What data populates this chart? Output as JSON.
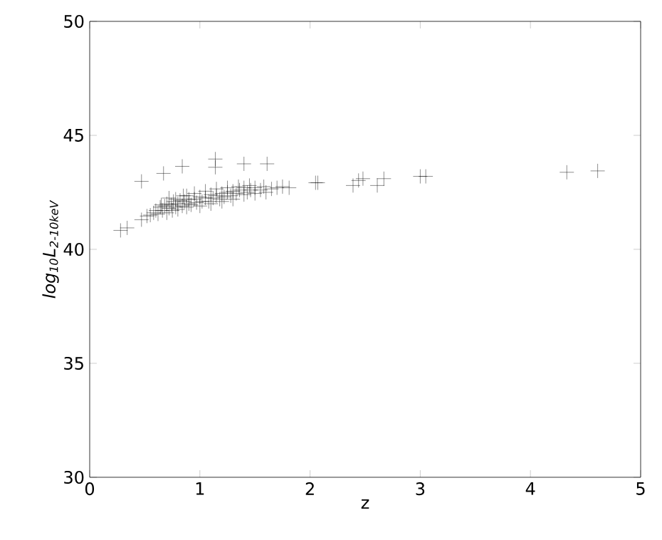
{
  "chart_data": {
    "type": "scatter",
    "xlabel": "z",
    "ylabel": "*log$_{10}$L$_{2-10keV}$*",
    "xlim": [
      0,
      5
    ],
    "ylim": [
      30,
      50
    ],
    "xticks": [
      0,
      1,
      2,
      3,
      4,
      5
    ],
    "yticks": [
      30,
      35,
      40,
      45,
      50
    ],
    "grid": false,
    "marker": "cross",
    "series": [
      {
        "color": "#000000",
        "x": [
          0.28,
          0.34,
          0.47,
          0.47,
          0.52,
          0.67,
          0.84,
          1.14,
          1.14,
          1.4,
          1.61,
          1.81,
          2.05,
          2.07,
          2.39,
          2.44,
          2.48,
          2.61,
          2.67,
          3.0,
          3.05,
          4.33,
          4.61,
          0.55,
          0.58,
          0.6,
          0.62,
          0.64,
          0.66,
          0.68,
          0.7,
          0.7,
          0.72,
          0.74,
          0.75,
          0.76,
          0.78,
          0.8,
          0.8,
          0.82,
          0.84,
          0.86,
          0.88,
          0.9,
          0.9,
          0.92,
          0.95,
          0.97,
          1.0,
          1.0,
          1.02,
          1.05,
          1.08,
          1.1,
          1.1,
          1.12,
          1.15,
          1.18,
          1.2,
          1.2,
          1.22,
          1.25,
          1.28,
          1.3,
          1.3,
          1.33,
          1.36,
          1.4,
          1.4,
          1.43,
          1.46,
          1.5,
          1.5,
          1.55,
          1.58,
          1.6,
          1.65,
          1.7,
          1.75,
          0.72,
          0.85,
          0.95,
          1.05,
          1.15,
          1.25,
          1.35,
          1.45,
          0.65,
          0.78,
          0.88
        ],
        "values": [
          40.83,
          40.94,
          42.98,
          41.3,
          41.46,
          43.33,
          43.64,
          43.96,
          43.6,
          43.75,
          43.75,
          42.7,
          42.92,
          42.92,
          42.8,
          43.02,
          43.1,
          42.8,
          43.1,
          43.2,
          43.2,
          43.38,
          43.44,
          41.5,
          41.6,
          41.7,
          41.55,
          41.85,
          41.7,
          41.9,
          41.6,
          42.0,
          41.8,
          41.95,
          41.7,
          42.1,
          41.85,
          42.0,
          41.75,
          42.15,
          41.9,
          42.1,
          41.85,
          42.2,
          42.0,
          41.95,
          42.2,
          42.05,
          42.3,
          41.9,
          42.1,
          42.25,
          42.1,
          42.4,
          42.0,
          42.25,
          42.35,
          42.2,
          42.45,
          42.1,
          42.3,
          42.5,
          42.35,
          42.55,
          42.2,
          42.45,
          42.6,
          42.4,
          42.7,
          42.5,
          42.6,
          42.7,
          42.45,
          42.6,
          42.75,
          42.5,
          42.65,
          42.7,
          42.75,
          42.25,
          42.35,
          42.45,
          42.55,
          42.65,
          42.7,
          42.75,
          42.8,
          41.95,
          42.2,
          42.35
        ]
      }
    ]
  }
}
